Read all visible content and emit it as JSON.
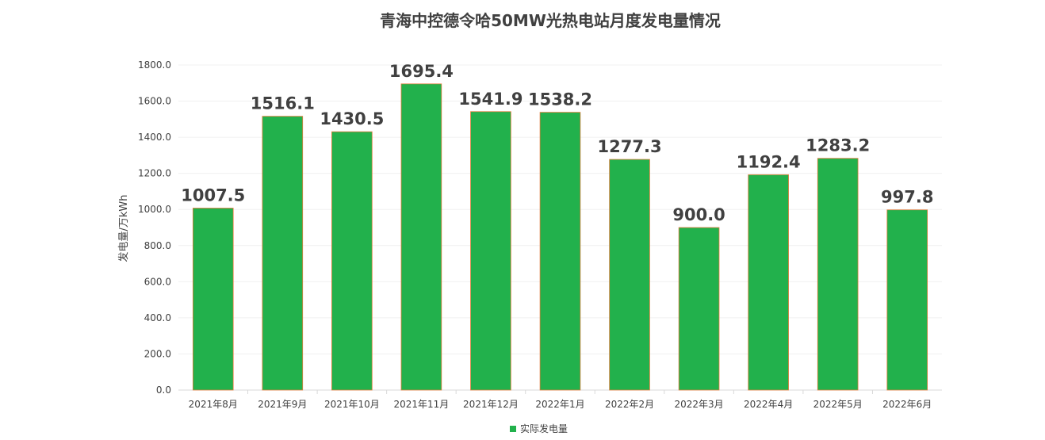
{
  "chart_data": {
    "type": "bar",
    "title": "青海中控德令哈50MW光热电站月度发电量情况",
    "xlabel": "",
    "ylabel": "发电量/万kWh",
    "ylim": [
      0,
      1800
    ],
    "ytick_step": 200,
    "ytick_labels": [
      "0.0",
      "200.0",
      "400.0",
      "600.0",
      "800.0",
      "1000.0",
      "1200.0",
      "1400.0",
      "1600.0",
      "1800.0"
    ],
    "categories": [
      "2021年8月",
      "2021年9月",
      "2021年10月",
      "2021年11月",
      "2021年12月",
      "2022年1月",
      "2022年2月",
      "2022年3月",
      "2022年4月",
      "2022年5月",
      "2022年6月"
    ],
    "series": [
      {
        "name": "实际发电量",
        "values": [
          1007.5,
          1516.1,
          1430.5,
          1695.4,
          1541.9,
          1538.2,
          1277.3,
          900.0,
          1192.4,
          1283.2,
          997.8
        ],
        "data_labels": [
          "1007.5",
          "1516.1",
          "1430.5",
          "1695.4",
          "1541.9",
          "1538.2",
          "1277.3",
          "900.0",
          "1192.4",
          "1283.2",
          "997.8"
        ],
        "color": "#22b14c",
        "border_color": "#e07b39"
      }
    ],
    "grid": true,
    "grid_color": "#f0f0f0",
    "legend": "bottom-center"
  }
}
